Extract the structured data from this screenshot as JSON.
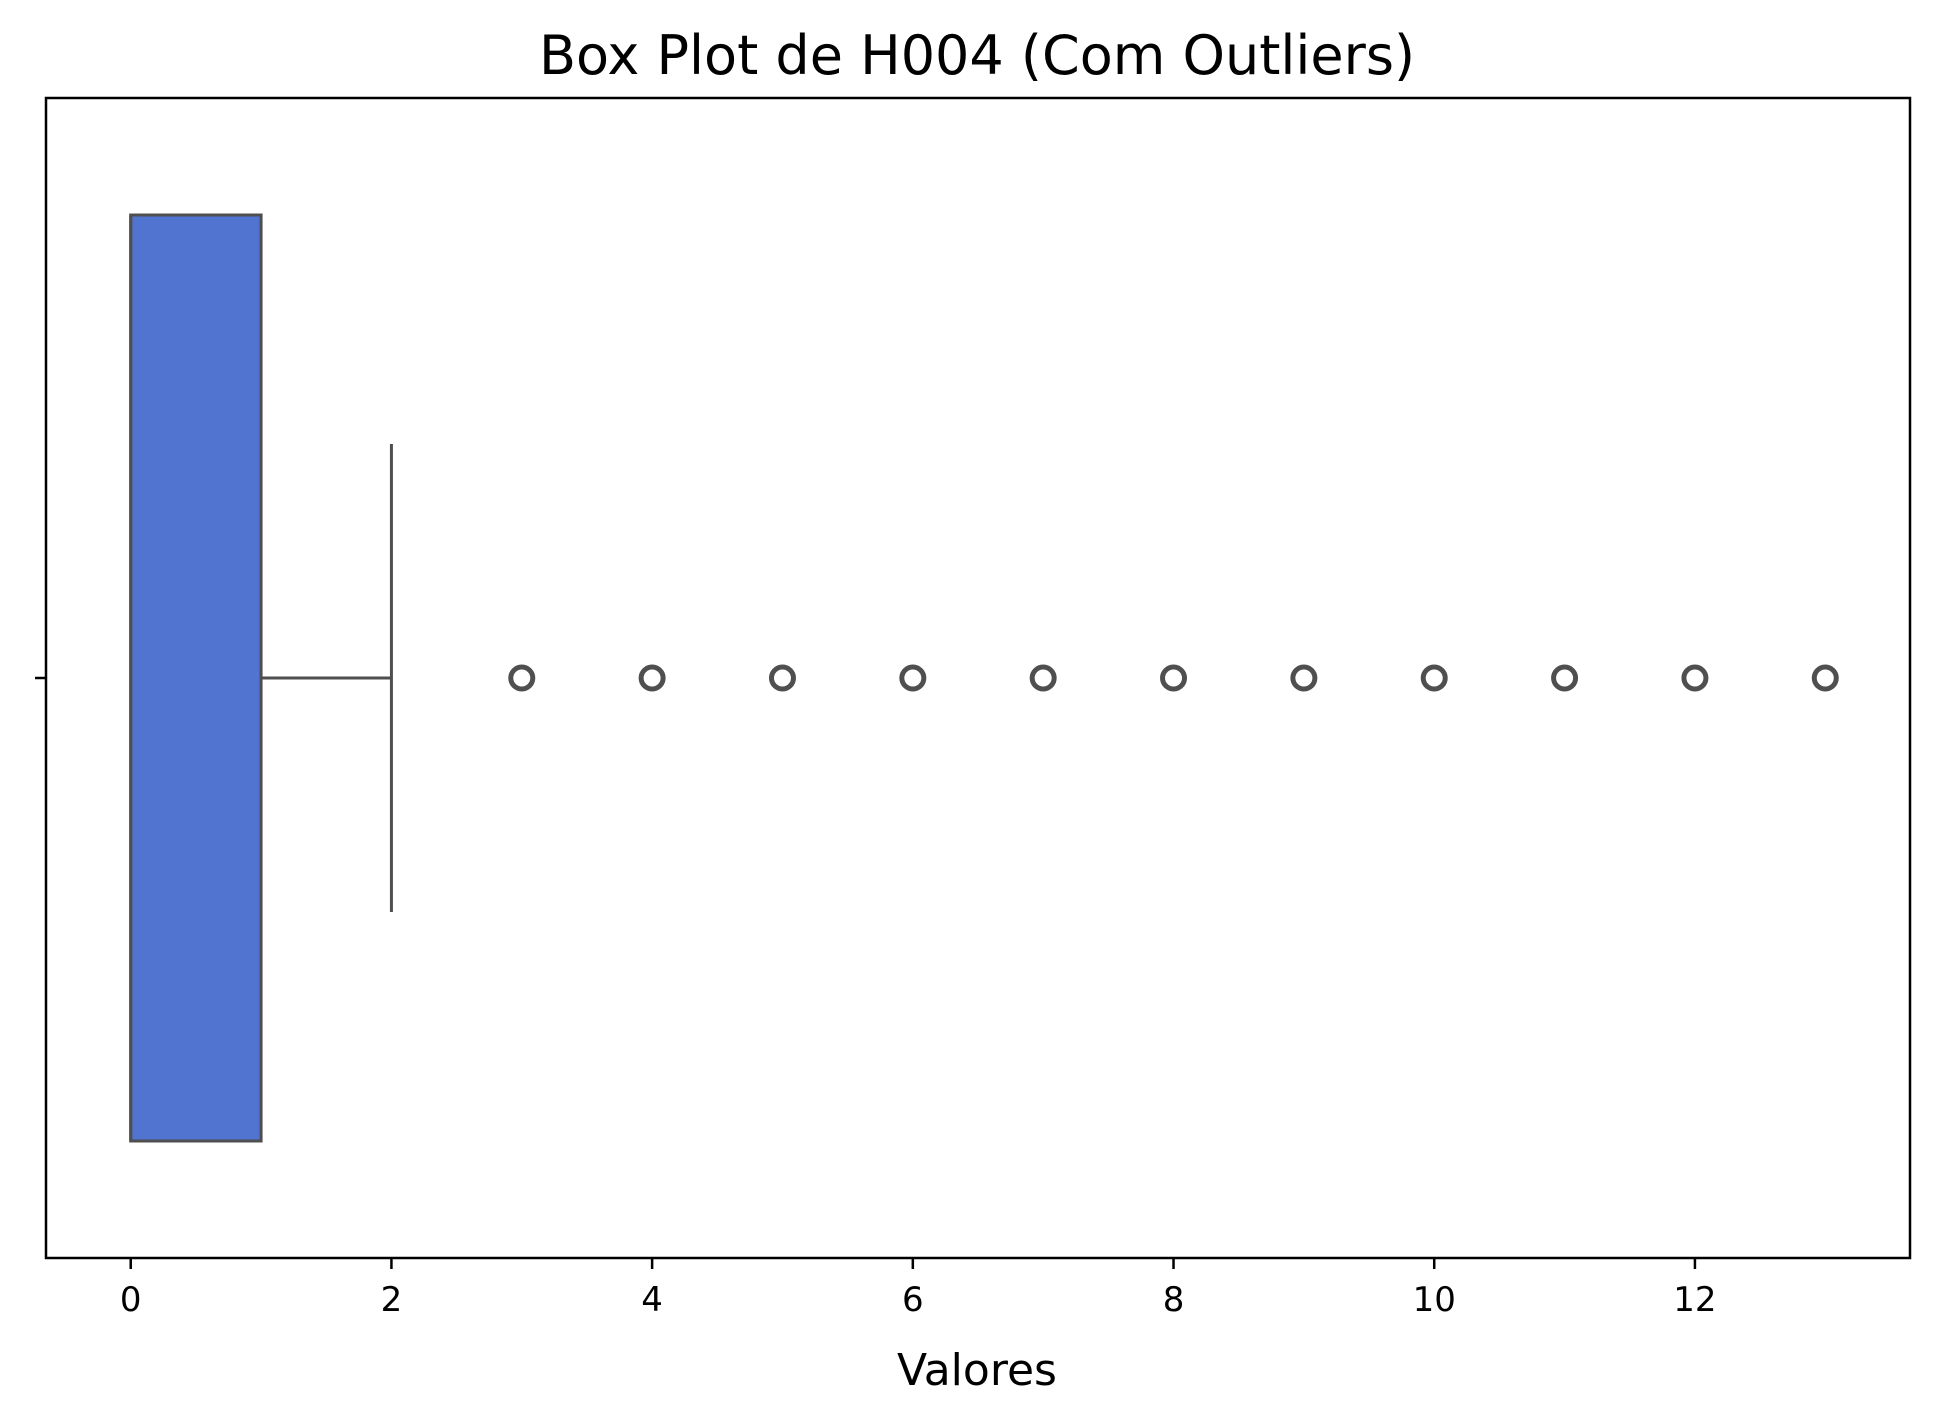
{
  "chart_data": {
    "type": "boxplot",
    "orientation": "horizontal",
    "title": "Box Plot de H004 (Com Outliers)",
    "xlabel": "Valores",
    "ylabel": "",
    "xlim": [
      -0.65,
      13.65
    ],
    "xticks": [
      0,
      2,
      4,
      6,
      8,
      10,
      12
    ],
    "xtick_labels": [
      "0",
      "2",
      "4",
      "6",
      "8",
      "10",
      "12"
    ],
    "grid": false,
    "legend": "none",
    "box": {
      "q1": 0,
      "median": 0,
      "q3": 1,
      "whisker_low": 0,
      "whisker_high": 2
    },
    "outliers": [
      3,
      4,
      5,
      6,
      7,
      8,
      9,
      10,
      11,
      12,
      13
    ],
    "colors": {
      "box_fill": "#5274D1",
      "line": "#4F4F4F",
      "axes": "#000000"
    }
  }
}
